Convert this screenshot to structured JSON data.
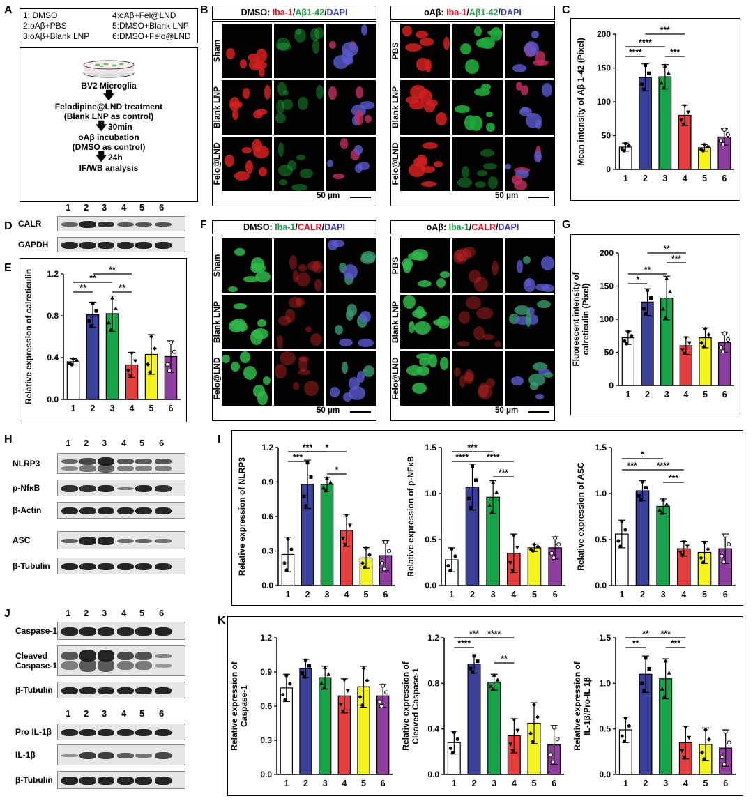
{
  "panel_labels": [
    "A",
    "B",
    "C",
    "D",
    "E",
    "F",
    "G",
    "H",
    "I",
    "J",
    "K"
  ],
  "groups_legend": [
    "1: DMSO",
    "2:oAβ+PBS",
    "3:oAβ+Blank LNP",
    "4:oAβ+Fel@LND",
    "5:DMSO+Blank LNP",
    "6:DMSO+Felo@LND"
  ],
  "flow": {
    "dish_label": "BV2 Microglia",
    "step1": "Felodipine@LND treatment",
    "step1_sub": "(Blank LNP as control)",
    "time1": "30min",
    "step2": "oAβ incubation",
    "step2_sub": "(DMSO as control)",
    "time2": "24h",
    "step3": "IF/WB analysis"
  },
  "panelB": {
    "left_header": {
      "prefix": "DMSO: ",
      "c1": "Iba-1",
      "s1": "/",
      "c2": "Aβ1-42",
      "s2": "/",
      "c3": "DAPI"
    },
    "right_header": {
      "prefix": "oAβ: ",
      "c1": "Iba-1",
      "s1": "/",
      "c2": "Aβ1-42",
      "s2": "/",
      "c3": "DAPI"
    },
    "left_rows": [
      "Sham",
      "Blank LNP",
      "Felo@LND"
    ],
    "right_rows": [
      "PBS",
      "Blank LNP",
      "Felo@LND"
    ],
    "scale": "50 μm"
  },
  "panelF": {
    "left_header": {
      "prefix": "DMSO: ",
      "c1": "Iba-1",
      "s1": "/",
      "c2": "CALR",
      "s2": "/",
      "c3": "DAPI"
    },
    "right_header": {
      "prefix": "oAβ: ",
      "c1": "Iba-1",
      "s1": "/",
      "c2": "CALR",
      "s2": "/",
      "c3": "DAPI"
    },
    "left_rows": [
      "Sham",
      "Blank LNP",
      "Felo@LND"
    ],
    "right_rows": [
      "PBS",
      "Blank LNP",
      "Felo@LND"
    ],
    "scale": "50 μm"
  },
  "lanes": [
    "1",
    "2",
    "3",
    "4",
    "5",
    "6"
  ],
  "wbD": {
    "labels": [
      "CALR",
      "GAPDH"
    ]
  },
  "wbH": {
    "labels": [
      "NLRP3",
      "p-NfκB",
      "β-Actin",
      "ASC",
      "β-Tubulin"
    ]
  },
  "wbJ": {
    "labels": [
      "Caspase-1",
      "Cleaved Caspase-1",
      "β-Tubulin",
      "Pro IL-1β",
      "IL-1β",
      "β-Tubulin"
    ]
  },
  "colors": {
    "g1": "#ffffff",
    "g2": "#3a3f9a",
    "g3": "#16a34a",
    "g4": "#e53e3e",
    "g5": "#f5f51e",
    "g6": "#8e3c9e",
    "red": "#e8101b",
    "green": "#1a9b3c",
    "blue": "#3b3bb5"
  },
  "chart_data": [
    {
      "id": "C",
      "type": "bar",
      "categories": [
        "1",
        "2",
        "3",
        "4",
        "5",
        "6"
      ],
      "values": [
        33,
        136,
        137,
        80,
        32,
        48
      ],
      "errors": [
        6,
        20,
        18,
        15,
        5,
        12
      ],
      "ylabel": "Mean intensity of Aβ 1-42 (Pixel)",
      "ylim": [
        0,
        200
      ],
      "yticks": [
        "0",
        "50",
        "100",
        "150",
        "200"
      ],
      "sig": [
        {
          "a": 1,
          "b": 2,
          "label": "****"
        },
        {
          "a": 1,
          "b": 3,
          "label": "****"
        },
        {
          "a": 2,
          "b": 4,
          "label": "***"
        },
        {
          "a": 3,
          "b": 4,
          "label": "***"
        }
      ]
    },
    {
      "id": "E",
      "type": "bar",
      "categories": [
        "1",
        "2",
        "3",
        "4",
        "5",
        "6"
      ],
      "values": [
        0.36,
        0.81,
        0.82,
        0.33,
        0.43,
        0.41
      ],
      "errors": [
        0.03,
        0.12,
        0.17,
        0.12,
        0.19,
        0.15
      ],
      "ylabel": "Relative expression of calreticulin",
      "ylim": [
        0,
        1.2
      ],
      "yticks": [
        "0.0",
        "0.4",
        "0.8",
        "1.2"
      ],
      "sig": [
        {
          "a": 1,
          "b": 2,
          "label": "**"
        },
        {
          "a": 1,
          "b": 3,
          "label": "**"
        },
        {
          "a": 2,
          "b": 4,
          "label": "**"
        },
        {
          "a": 3,
          "b": 4,
          "label": "**"
        }
      ]
    },
    {
      "id": "G",
      "type": "bar",
      "categories": [
        "1",
        "2",
        "3",
        "4",
        "5",
        "6"
      ],
      "values": [
        72,
        126,
        132,
        60,
        72,
        65
      ],
      "errors": [
        10,
        20,
        33,
        13,
        15,
        15
      ],
      "ylabel": "Fluorescent intensity of calreticulin (Pixel)",
      "ylim": [
        0,
        200
      ],
      "yticks": [
        "0",
        "50",
        "100",
        "150",
        "200"
      ],
      "sig": [
        {
          "a": 1,
          "b": 2,
          "label": "*"
        },
        {
          "a": 1,
          "b": 3,
          "label": "**"
        },
        {
          "a": 2,
          "b": 4,
          "label": "**"
        },
        {
          "a": 3,
          "b": 4,
          "label": "***"
        }
      ]
    },
    {
      "id": "I1",
      "type": "bar",
      "categories": [
        "1",
        "2",
        "3",
        "4",
        "5",
        "6"
      ],
      "values": [
        0.27,
        0.88,
        0.88,
        0.48,
        0.24,
        0.26
      ],
      "errors": [
        0.15,
        0.21,
        0.06,
        0.14,
        0.09,
        0.13
      ],
      "ylabel": "Relative expression of NLRP3",
      "ylim": [
        0,
        1.2
      ],
      "yticks": [
        "0.0",
        "0.3",
        "0.6",
        "0.9",
        "1.2"
      ],
      "sig": [
        {
          "a": 1,
          "b": 2,
          "label": "***"
        },
        {
          "a": 1,
          "b": 3,
          "label": "***"
        },
        {
          "a": 2,
          "b": 4,
          "label": "*"
        },
        {
          "a": 3,
          "b": 4,
          "label": "*"
        }
      ]
    },
    {
      "id": "I2",
      "type": "bar",
      "categories": [
        "1",
        "2",
        "3",
        "4",
        "5",
        "6"
      ],
      "values": [
        0.28,
        1.07,
        0.96,
        0.35,
        0.41,
        0.41
      ],
      "errors": [
        0.13,
        0.25,
        0.18,
        0.21,
        0.04,
        0.12
      ],
      "ylabel": "Relative expression of p-NFκB",
      "ylim": [
        0,
        1.5
      ],
      "yticks": [
        "0.0",
        "0.5",
        "1.0",
        "1.5"
      ],
      "sig": [
        {
          "a": 1,
          "b": 2,
          "label": "****"
        },
        {
          "a": 1,
          "b": 3,
          "label": "***"
        },
        {
          "a": 2,
          "b": 4,
          "label": "****"
        },
        {
          "a": 3,
          "b": 4,
          "label": "***"
        }
      ]
    },
    {
      "id": "I3",
      "type": "bar",
      "categories": [
        "1",
        "2",
        "3",
        "4",
        "5",
        "6"
      ],
      "values": [
        0.56,
        1.03,
        0.86,
        0.4,
        0.36,
        0.4
      ],
      "errors": [
        0.15,
        0.11,
        0.08,
        0.08,
        0.12,
        0.16
      ],
      "ylabel": "Relative expression of ASC",
      "ylim": [
        0,
        1.5
      ],
      "yticks": [
        "0.0",
        "0.5",
        "1.0",
        "1.5"
      ],
      "sig": [
        {
          "a": 1,
          "b": 2,
          "label": "***"
        },
        {
          "a": 1,
          "b": 3,
          "label": "*"
        },
        {
          "a": 2,
          "b": 4,
          "label": "****"
        },
        {
          "a": 3,
          "b": 4,
          "label": "***"
        }
      ]
    },
    {
      "id": "K1",
      "type": "bar",
      "categories": [
        "1",
        "2",
        "3",
        "4",
        "5",
        "6"
      ],
      "values": [
        0.76,
        0.93,
        0.85,
        0.69,
        0.77,
        0.69
      ],
      "errors": [
        0.12,
        0.08,
        0.1,
        0.15,
        0.18,
        0.1
      ],
      "ylabel": "Relative expression of Caspase-1",
      "ylim": [
        0,
        1.2
      ],
      "yticks": [
        "0.0",
        "0.3",
        "0.6",
        "0.9",
        "1.2"
      ],
      "sig": []
    },
    {
      "id": "K2",
      "type": "bar",
      "categories": [
        "1",
        "2",
        "3",
        "4",
        "5",
        "6"
      ],
      "values": [
        0.28,
        0.97,
        0.81,
        0.34,
        0.45,
        0.26
      ],
      "errors": [
        0.1,
        0.08,
        0.07,
        0.15,
        0.18,
        0.17
      ],
      "ylabel": "Relative expression of Cleaved Caspase-1",
      "ylim": [
        0,
        1.2
      ],
      "yticks": [
        "0.0",
        "0.4",
        "0.8",
        "1.2"
      ],
      "sig": [
        {
          "a": 1,
          "b": 2,
          "label": "****"
        },
        {
          "a": 1,
          "b": 3,
          "label": "***"
        },
        {
          "a": 2,
          "b": 4,
          "label": "****"
        },
        {
          "a": 3,
          "b": 4,
          "label": "**"
        }
      ]
    },
    {
      "id": "K3",
      "type": "bar",
      "categories": [
        "1",
        "2",
        "3",
        "4",
        "5",
        "6"
      ],
      "values": [
        0.49,
        1.1,
        1.05,
        0.35,
        0.33,
        0.29
      ],
      "errors": [
        0.14,
        0.2,
        0.22,
        0.18,
        0.18,
        0.2
      ],
      "ylabel": "Relative expression of IL-1β/Pro-IL 1β",
      "ylim": [
        0,
        1.5
      ],
      "yticks": [
        "0.0",
        "0.5",
        "1.0",
        "1.5"
      ],
      "sig": [
        {
          "a": 1,
          "b": 2,
          "label": "**"
        },
        {
          "a": 1,
          "b": 3,
          "label": "**"
        },
        {
          "a": 2,
          "b": 4,
          "label": "***"
        },
        {
          "a": 3,
          "b": 4,
          "label": "***"
        }
      ]
    }
  ]
}
